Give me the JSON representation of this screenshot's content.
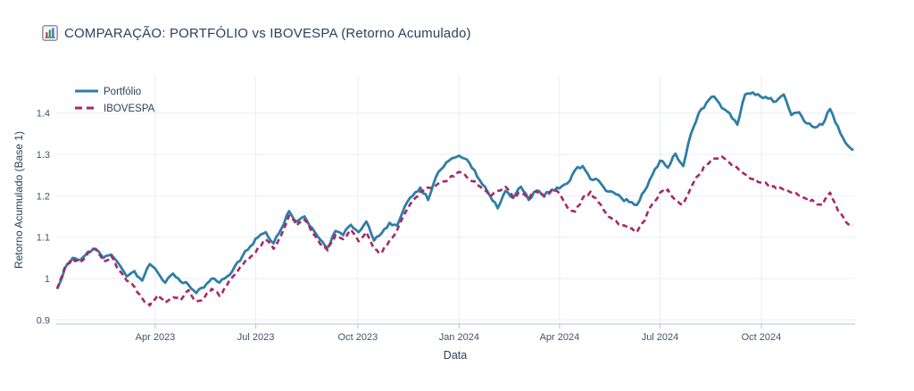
{
  "title": {
    "icon": "bar-chart-icon",
    "text": "COMPARAÇÃO: PORTFÓLIO vs IBOVESPA (Retorno Acumulado)"
  },
  "colors": {
    "portfolio_line": "#2e7ea6",
    "ibovespa_line": "#a82765",
    "grid": "#e9edf4",
    "axis_line": "#b9c2cf",
    "tick_text": "#42526b",
    "title_text": "#2b415f"
  },
  "chart_data": {
    "type": "line",
    "title": "COMPARAÇÃO: PORTFÓLIO vs IBOVESPA (Retorno Acumulado)",
    "xlabel": "Data",
    "ylabel": "Retorno Acumulado (Base 1)",
    "grid": true,
    "legend_position": "top-left",
    "x_unit": "weeks since 2023-01-02",
    "xlim_weeks": [
      0,
      103
    ],
    "ylim": [
      0.89,
      1.49
    ],
    "y_ticks": [
      {
        "label": "0.9",
        "value": 0.9
      },
      {
        "label": "1",
        "value": 1.0
      },
      {
        "label": "1.1",
        "value": 1.1
      },
      {
        "label": "1.2",
        "value": 1.2
      },
      {
        "label": "1.3",
        "value": 1.3
      },
      {
        "label": "1.4",
        "value": 1.4
      }
    ],
    "x_ticks": [
      {
        "label": "Apr 2023",
        "week": 12.7
      },
      {
        "label": "Jul 2023",
        "week": 25.7
      },
      {
        "label": "Oct 2023",
        "week": 38.9
      },
      {
        "label": "Jan 2024",
        "week": 52.0
      },
      {
        "label": "Apr 2024",
        "week": 65.0
      },
      {
        "label": "Jul 2024",
        "week": 78.0
      },
      {
        "label": "Oct 2024",
        "week": 91.1
      }
    ],
    "series": [
      {
        "name": "Portfólio",
        "color": "#2e7ea6",
        "dash": "solid",
        "values": [
          0.975,
          1.025,
          1.05,
          1.045,
          1.065,
          1.07,
          1.05,
          1.058,
          1.035,
          1.005,
          1.018,
          0.995,
          1.035,
          1.015,
          0.99,
          1.012,
          0.992,
          0.985,
          0.965,
          0.978,
          1.0,
          0.99,
          1.005,
          1.03,
          1.055,
          1.078,
          1.1,
          1.112,
          1.085,
          1.12,
          1.163,
          1.138,
          1.15,
          1.122,
          1.095,
          1.075,
          1.115,
          1.105,
          1.13,
          1.112,
          1.138,
          1.092,
          1.11,
          1.135,
          1.128,
          1.175,
          1.2,
          1.22,
          1.19,
          1.245,
          1.27,
          1.29,
          1.297,
          1.288,
          1.262,
          1.228,
          1.2,
          1.17,
          1.212,
          1.195,
          1.222,
          1.19,
          1.212,
          1.2,
          1.215,
          1.218,
          1.23,
          1.262,
          1.272,
          1.24,
          1.238,
          1.212,
          1.208,
          1.195,
          1.185,
          1.178,
          1.212,
          1.25,
          1.285,
          1.268,
          1.302,
          1.272,
          1.35,
          1.4,
          1.425,
          1.44,
          1.412,
          1.4,
          1.372,
          1.445,
          1.45,
          1.44,
          1.435,
          1.428,
          1.445,
          1.395,
          1.402,
          1.375,
          1.365,
          1.372,
          1.41,
          1.368,
          1.328,
          1.31
        ]
      },
      {
        "name": "IBOVESPA",
        "color": "#a82765",
        "dash": "dash",
        "values": [
          0.975,
          1.028,
          1.048,
          1.04,
          1.062,
          1.072,
          1.042,
          1.055,
          1.02,
          0.995,
          0.98,
          0.952,
          0.935,
          0.96,
          0.942,
          0.955,
          0.948,
          0.972,
          0.945,
          0.952,
          0.975,
          0.958,
          0.985,
          1.01,
          1.032,
          1.052,
          1.075,
          1.095,
          1.072,
          1.105,
          1.152,
          1.128,
          1.142,
          1.11,
          1.085,
          1.068,
          1.105,
          1.095,
          1.118,
          1.09,
          1.112,
          1.072,
          1.062,
          1.092,
          1.118,
          1.158,
          1.188,
          1.21,
          1.22,
          1.225,
          1.235,
          1.248,
          1.258,
          1.245,
          1.235,
          1.218,
          1.198,
          1.212,
          1.222,
          1.195,
          1.208,
          1.192,
          1.212,
          1.198,
          1.215,
          1.205,
          1.172,
          1.162,
          1.195,
          1.21,
          1.185,
          1.158,
          1.14,
          1.128,
          1.12,
          1.112,
          1.14,
          1.18,
          1.208,
          1.215,
          1.19,
          1.18,
          1.22,
          1.25,
          1.275,
          1.29,
          1.295,
          1.28,
          1.268,
          1.252,
          1.24,
          1.232,
          1.225,
          1.218,
          1.215,
          1.208,
          1.2,
          1.192,
          1.185,
          1.178,
          1.208,
          1.165,
          1.138,
          1.13
        ]
      }
    ]
  }
}
